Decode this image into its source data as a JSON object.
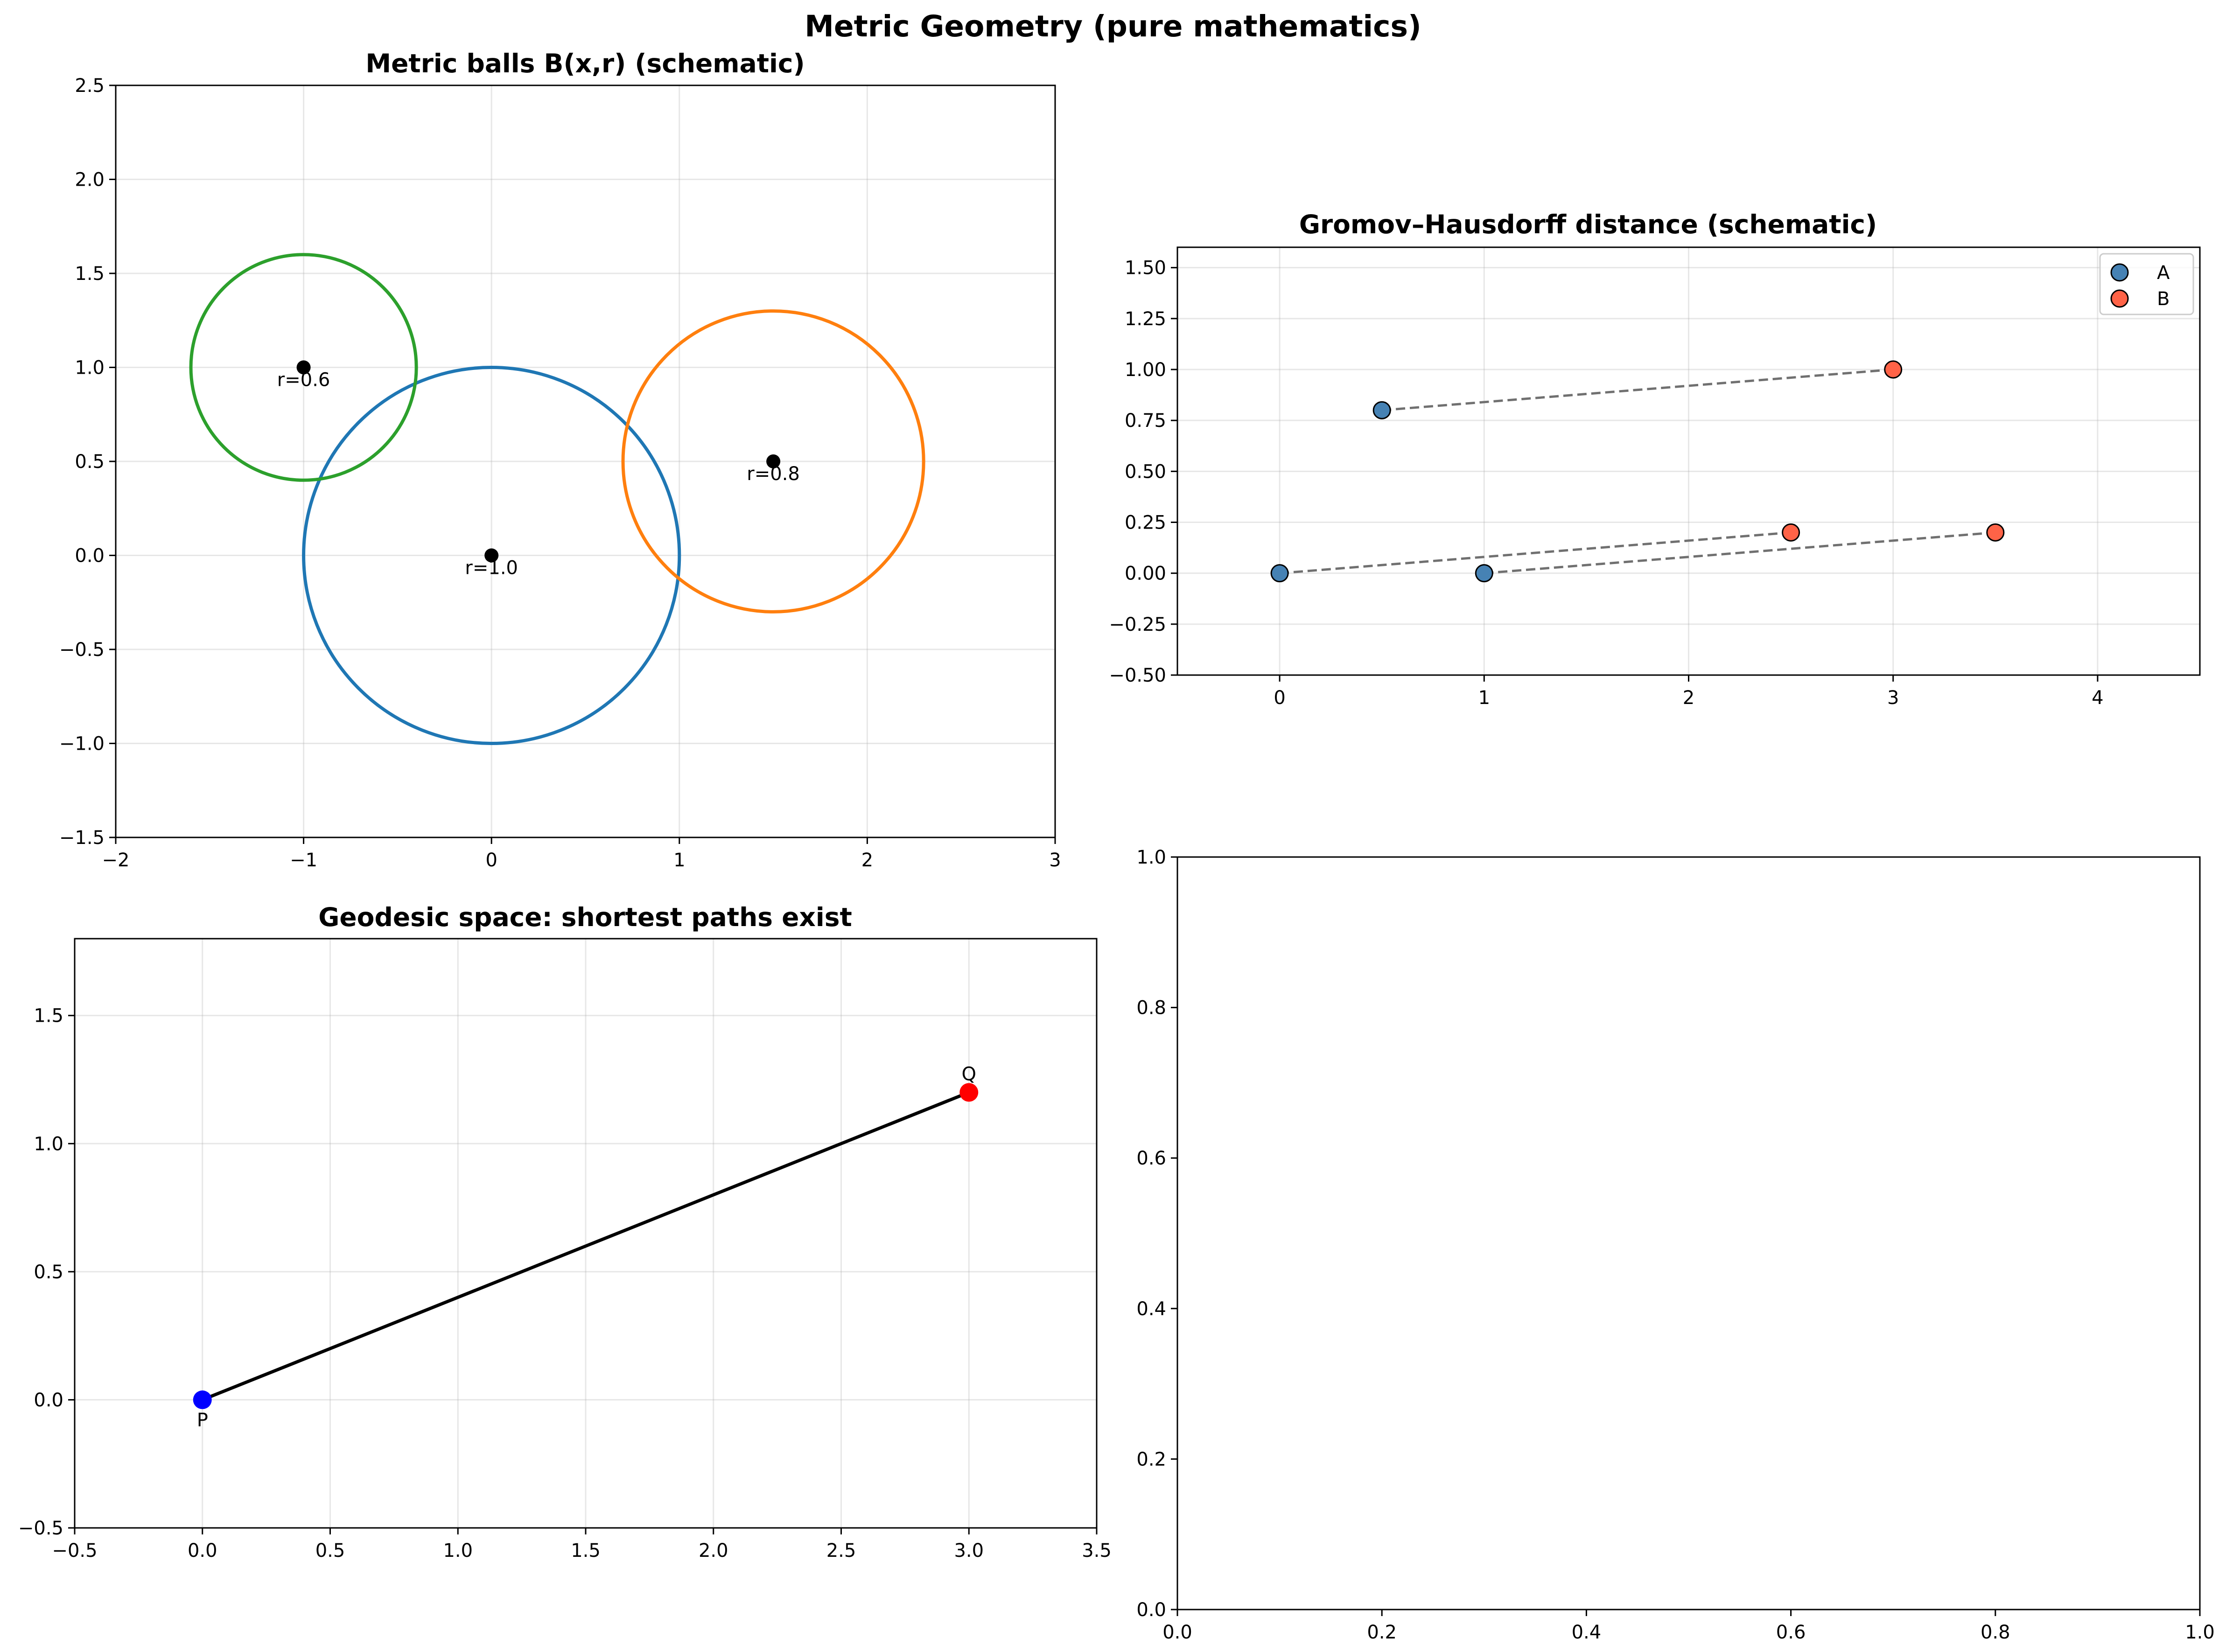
{
  "suptitle": "Metric Geometry (pure mathematics)",
  "chart_data": [
    {
      "type": "scatter",
      "title": "Metric balls B(x,r) (schematic)",
      "xlabel": "",
      "ylabel": "",
      "xlim": [
        -2,
        3
      ],
      "ylim": [
        -1.5,
        2.5
      ],
      "grid": true,
      "xticks": [
        -2,
        -1,
        0,
        1,
        2,
        3
      ],
      "xtick_labels": [
        "−2",
        "−1",
        "0",
        "1",
        "2",
        "3"
      ],
      "yticks": [
        -1.5,
        -1.0,
        -0.5,
        0.0,
        0.5,
        1.0,
        1.5,
        2.0,
        2.5
      ],
      "ytick_labels": [
        "−1.5",
        "−1.0",
        "−0.5",
        "0.0",
        "0.5",
        "1.0",
        "1.5",
        "2.0",
        "2.5"
      ],
      "balls": [
        {
          "center": [
            0.0,
            0.0
          ],
          "r": 1.0,
          "color": "#1f77b4",
          "label": "r=1.0"
        },
        {
          "center": [
            1.5,
            0.5
          ],
          "r": 0.8,
          "color": "#ff7f0e",
          "label": "r=0.8"
        },
        {
          "center": [
            -1.0,
            1.0
          ],
          "r": 0.6,
          "color": "#2ca02c",
          "label": "r=0.6"
        }
      ],
      "center_color": "#000000"
    },
    {
      "type": "scatter",
      "title": "Gromov–Hausdorff distance (schematic)",
      "xlabel": "",
      "ylabel": "",
      "xlim": [
        -0.5,
        4.5
      ],
      "ylim": [
        -0.5,
        1.6
      ],
      "grid": true,
      "legend_position": "upper right",
      "xticks": [
        0,
        1,
        2,
        3,
        4
      ],
      "xtick_labels": [
        "0",
        "1",
        "2",
        "3",
        "4"
      ],
      "yticks": [
        -0.5,
        -0.25,
        0.0,
        0.25,
        0.5,
        0.75,
        1.0,
        1.25,
        1.5
      ],
      "ytick_labels": [
        "−0.50",
        "−0.25",
        "0.00",
        "0.25",
        "0.50",
        "0.75",
        "1.00",
        "1.25",
        "1.50"
      ],
      "series": [
        {
          "name": "A",
          "color": "#4682b4",
          "x": [
            0,
            1,
            0.5
          ],
          "y": [
            0,
            0,
            0.8
          ]
        },
        {
          "name": "B",
          "color": "#ff6347",
          "x": [
            2.5,
            3.5,
            3.0
          ],
          "y": [
            0.2,
            0.2,
            1.0
          ]
        }
      ],
      "connectors": [
        {
          "from": [
            0,
            0
          ],
          "to": [
            2.5,
            0.2
          ]
        },
        {
          "from": [
            1,
            0
          ],
          "to": [
            3.5,
            0.2
          ]
        },
        {
          "from": [
            0.5,
            0.8
          ],
          "to": [
            3.0,
            1.0
          ]
        }
      ],
      "connector_color": "#707070"
    },
    {
      "type": "line",
      "title": "Geodesic space: shortest paths exist",
      "xlabel": "",
      "ylabel": "",
      "xlim": [
        -0.5,
        3.5
      ],
      "ylim": [
        -0.5,
        1.8
      ],
      "grid": true,
      "xticks": [
        -0.5,
        0.0,
        0.5,
        1.0,
        1.5,
        2.0,
        2.5,
        3.0,
        3.5
      ],
      "xtick_labels": [
        "−0.5",
        "0.0",
        "0.5",
        "1.0",
        "1.5",
        "2.0",
        "2.5",
        "3.0",
        "3.5"
      ],
      "yticks": [
        -0.5,
        0.0,
        0.5,
        1.0,
        1.5
      ],
      "ytick_labels": [
        "−0.5",
        "0.0",
        "0.5",
        "1.0",
        "1.5"
      ],
      "path": {
        "x": [
          0,
          3
        ],
        "y": [
          0,
          1.2
        ],
        "color": "#000000"
      },
      "points": [
        {
          "label": "P",
          "x": 0,
          "y": 0,
          "color": "#0000ff",
          "label_position": "below"
        },
        {
          "label": "Q",
          "x": 3,
          "y": 1.2,
          "color": "#ff0000",
          "label_position": "above"
        }
      ]
    },
    {
      "type": "scatter",
      "title": "",
      "xlabel": "",
      "ylabel": "",
      "xlim": [
        0,
        1
      ],
      "ylim": [
        0,
        1
      ],
      "grid": false,
      "xticks": [
        0,
        0.2,
        0.4,
        0.6,
        0.8,
        1.0
      ],
      "xtick_labels": [
        "0.0",
        "0.2",
        "0.4",
        "0.6",
        "0.8",
        "1.0"
      ],
      "yticks": [
        0,
        0.2,
        0.4,
        0.6,
        0.8,
        1.0
      ],
      "ytick_labels": [
        "0.0",
        "0.2",
        "0.4",
        "0.6",
        "0.8",
        "1.0"
      ],
      "empty": true
    }
  ]
}
